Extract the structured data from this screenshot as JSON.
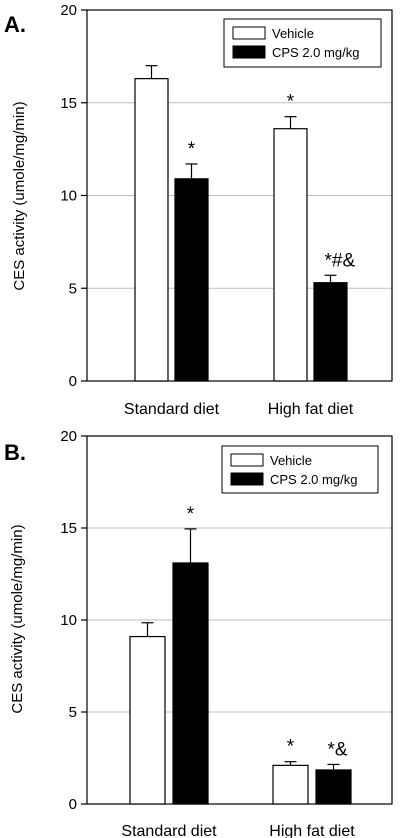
{
  "chart_data": [
    {
      "panel_label": "A.",
      "type": "bar",
      "categories": [
        "Standard diet",
        "High fat diet"
      ],
      "ylabel": "CES activity (umole/mg/min)",
      "ylim": [
        0,
        20
      ],
      "yticks": [
        "0",
        "5",
        "10",
        "15",
        "20"
      ],
      "grid": "horizontal",
      "legend_position": "top-right",
      "series": [
        {
          "name": "Vehicle",
          "color": "#ffffff",
          "values": [
            16.3,
            13.6
          ],
          "errors": [
            0.7,
            0.65
          ]
        },
        {
          "name": "CPS 2.0 mg/kg",
          "color": "#000000",
          "values": [
            10.9,
            5.3
          ],
          "errors": [
            0.8,
            0.4
          ]
        }
      ],
      "annotations": [
        {
          "series": 1,
          "category": 0,
          "text": "*"
        },
        {
          "series": 0,
          "category": 1,
          "text": "*"
        },
        {
          "series": 1,
          "category": 1,
          "text": "*#&"
        }
      ]
    },
    {
      "panel_label": "B.",
      "type": "bar",
      "categories": [
        "Standard diet",
        "High fat diet"
      ],
      "ylabel": "CES activity (umole/mg/min)",
      "ylim": [
        0,
        20
      ],
      "yticks": [
        "0",
        "5",
        "10",
        "15",
        "20"
      ],
      "grid": "horizontal",
      "legend_position": "top-right",
      "series": [
        {
          "name": "Vehicle",
          "color": "#ffffff",
          "values": [
            9.1,
            2.1
          ],
          "errors": [
            0.75,
            0.2
          ]
        },
        {
          "name": "CPS 2.0 mg/kg",
          "color": "#000000",
          "values": [
            13.1,
            1.85
          ],
          "errors": [
            1.85,
            0.3
          ]
        }
      ],
      "annotations": [
        {
          "series": 1,
          "category": 0,
          "text": "*"
        },
        {
          "series": 0,
          "category": 1,
          "text": "*"
        },
        {
          "series": 1,
          "category": 1,
          "text": "*&"
        }
      ]
    }
  ]
}
